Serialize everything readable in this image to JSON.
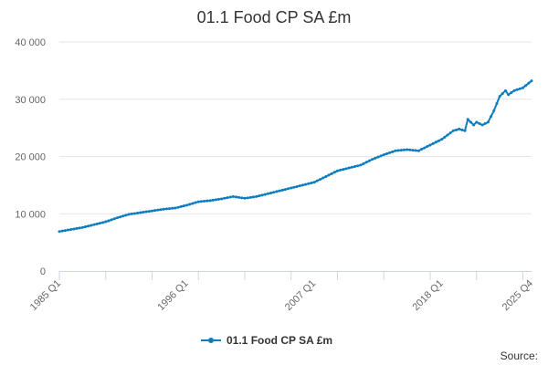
{
  "chart_data": {
    "type": "line",
    "title": "01.1 Food CP SA £m",
    "xlabel": "",
    "ylabel": "",
    "ylim": [
      0,
      40000
    ],
    "y_ticks": [
      {
        "value": 0,
        "label": "0"
      },
      {
        "value": 10000,
        "label": "10 000"
      },
      {
        "value": 20000,
        "label": "20 000"
      },
      {
        "value": 30000,
        "label": "30 000"
      },
      {
        "value": 40000,
        "label": "40 000"
      }
    ],
    "x_ticks": [
      {
        "label": "1985 Q1"
      },
      {
        "label": "1996 Q1"
      },
      {
        "label": "2007 Q1"
      },
      {
        "label": "2018 Q1"
      },
      {
        "label": "2025 Q4"
      }
    ],
    "x_range": [
      "1985 Q1",
      "2025 Q4"
    ],
    "grid": true,
    "legend_position": "bottom-center",
    "source_label": "Source:",
    "color": "#0c7dc0",
    "series": [
      {
        "name": "01.1 Food CP SA £m",
        "points": [
          [
            "1985 Q1",
            6900
          ],
          [
            "1986 Q1",
            7250
          ],
          [
            "1987 Q1",
            7600
          ],
          [
            "1988 Q1",
            8100
          ],
          [
            "1989 Q1",
            8600
          ],
          [
            "1990 Q1",
            9300
          ],
          [
            "1991 Q1",
            9900
          ],
          [
            "1992 Q1",
            10200
          ],
          [
            "1993 Q1",
            10500
          ],
          [
            "1994 Q1",
            10800
          ],
          [
            "1995 Q1",
            11000
          ],
          [
            "1996 Q1",
            11500
          ],
          [
            "1997 Q1",
            12100
          ],
          [
            "1998 Q1",
            12300
          ],
          [
            "1999 Q1",
            12600
          ],
          [
            "2000 Q1",
            13000
          ],
          [
            "2001 Q1",
            12700
          ],
          [
            "2002 Q1",
            13000
          ],
          [
            "2003 Q1",
            13500
          ],
          [
            "2004 Q1",
            14000
          ],
          [
            "2005 Q1",
            14500
          ],
          [
            "2006 Q1",
            15000
          ],
          [
            "2007 Q1",
            15500
          ],
          [
            "2008 Q1",
            16500
          ],
          [
            "2009 Q1",
            17500
          ],
          [
            "2010 Q1",
            18000
          ],
          [
            "2011 Q1",
            18500
          ],
          [
            "2012 Q1",
            19500
          ],
          [
            "2013 Q1",
            20300
          ],
          [
            "2014 Q1",
            21000
          ],
          [
            "2015 Q1",
            21200
          ],
          [
            "2016 Q1",
            21000
          ],
          [
            "2017 Q1",
            22000
          ],
          [
            "2018 Q1",
            23000
          ],
          [
            "2019 Q1",
            24500
          ],
          [
            "2019 Q3",
            24800
          ],
          [
            "2020 Q1",
            24500
          ],
          [
            "2020 Q2",
            26500
          ],
          [
            "2020 Q4",
            25500
          ],
          [
            "2021 Q1",
            26000
          ],
          [
            "2021 Q3",
            25500
          ],
          [
            "2022 Q1",
            26000
          ],
          [
            "2022 Q3",
            28000
          ],
          [
            "2023 Q1",
            30500
          ],
          [
            "2023 Q3",
            31500
          ],
          [
            "2023 Q4",
            30800
          ],
          [
            "2024 Q2",
            31500
          ],
          [
            "2025 Q1",
            32000
          ],
          [
            "2025 Q4",
            33200
          ]
        ]
      }
    ]
  }
}
